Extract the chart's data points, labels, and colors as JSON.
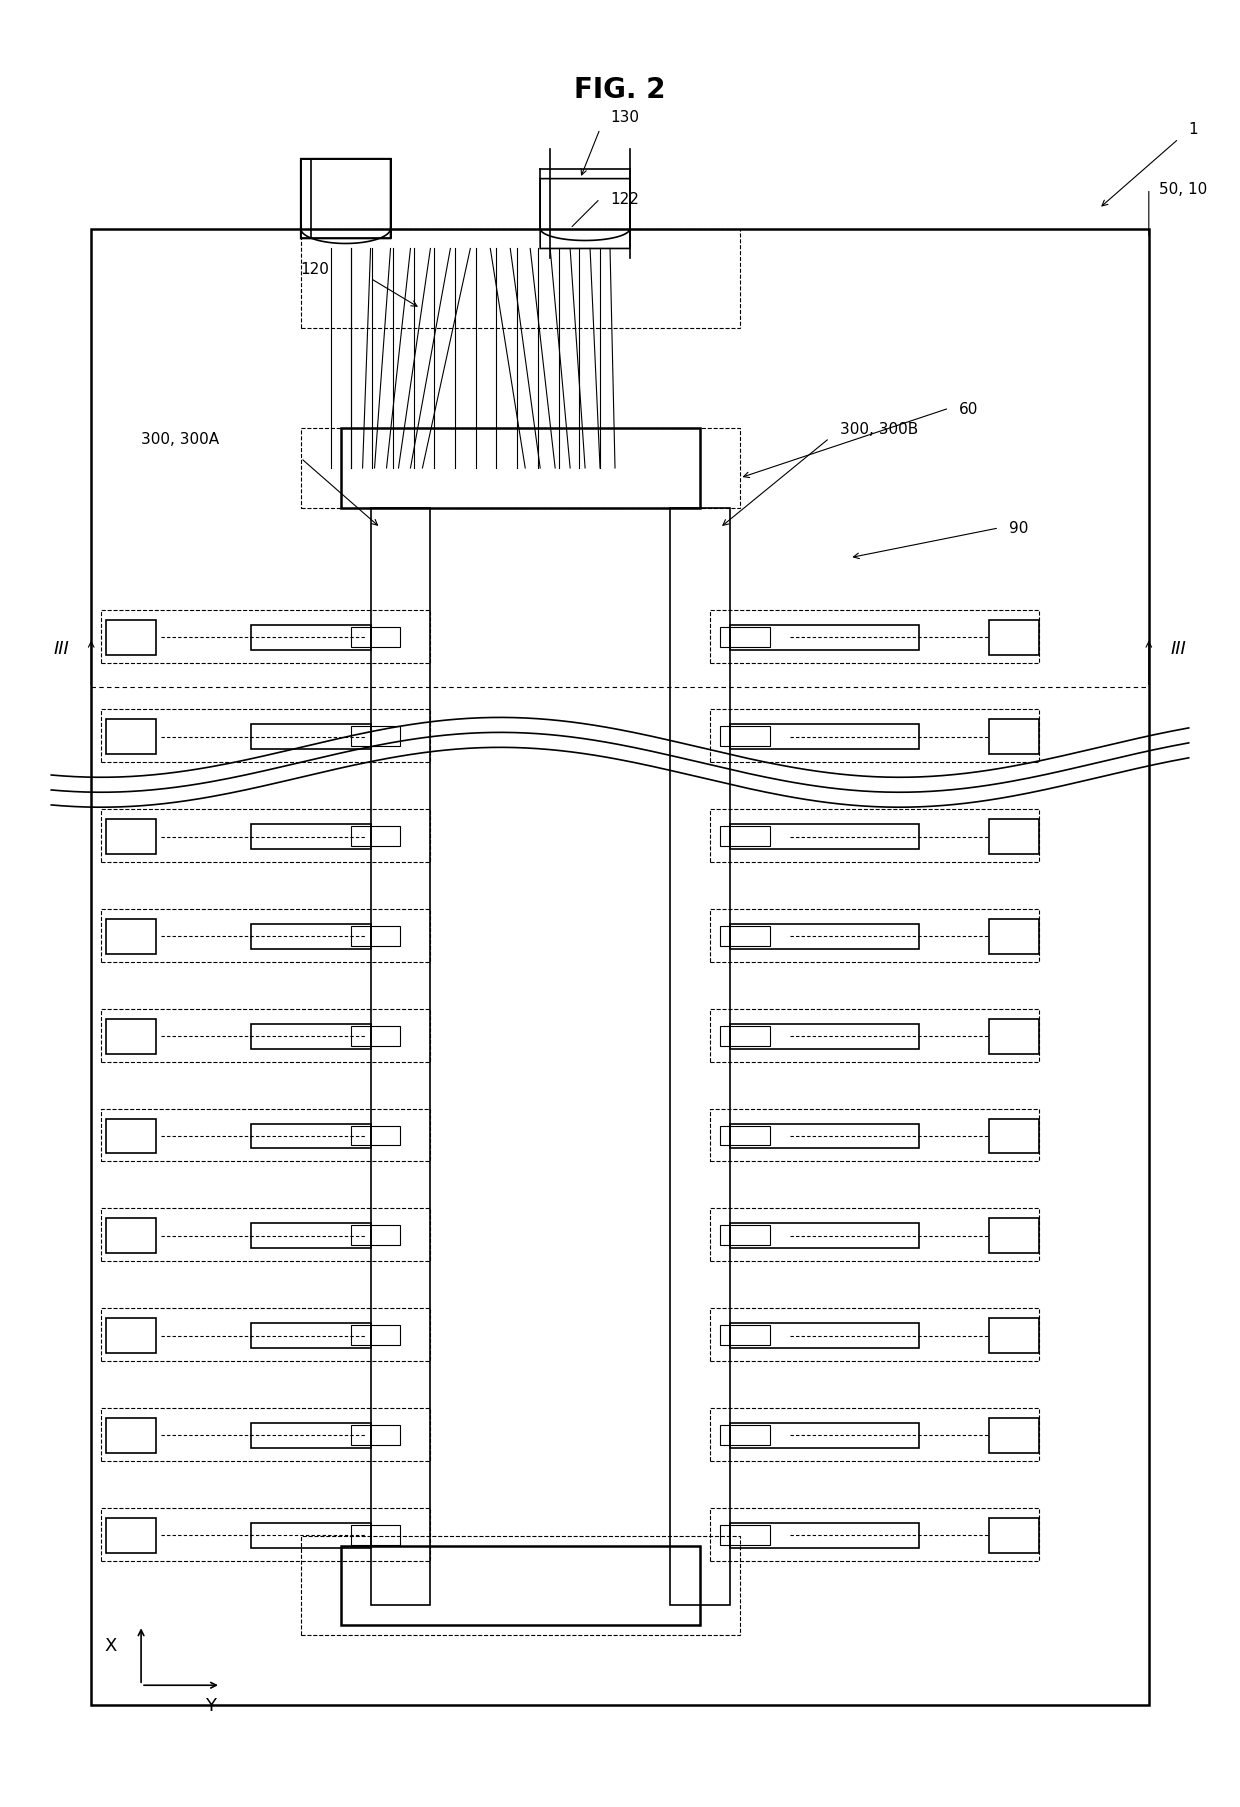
{
  "title": "FIG. 2",
  "bg_color": "#ffffff",
  "fig_width": 12.4,
  "fig_height": 18.08,
  "labels": {
    "fig_title": "FIG. 2",
    "ref_130": "130",
    "ref_122": "122",
    "ref_1": "1",
    "ref_50_10": "50, 10",
    "ref_120": "120",
    "ref_300_300A": "300, 300A",
    "ref_300_300B": "300, 300B",
    "ref_60": "60",
    "ref_90": "90",
    "ref_III_left": "III",
    "ref_III_right": "III",
    "ref_X": "X",
    "ref_Y": "Y"
  }
}
